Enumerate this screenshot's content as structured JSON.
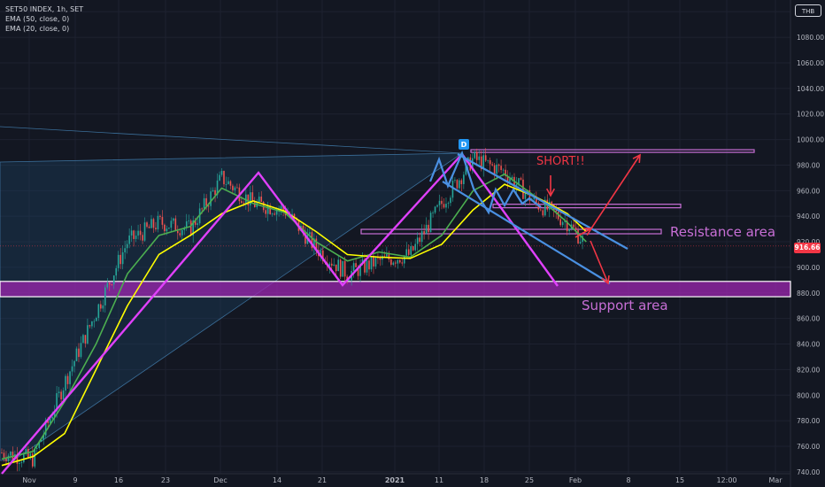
{
  "legend": {
    "symbol": "SET50 INDEX, 1h, SET",
    "ema50": "EMA (50, close, 0)",
    "ema20": "EMA (20, close, 0)"
  },
  "currency": "THB",
  "price_tag": "916.66",
  "annotations": {
    "short": "SHORT!!",
    "resistance": "Resistance area",
    "support": "Support area",
    "marker": "D"
  },
  "colors": {
    "background": "#131722",
    "bull": "#26a69a",
    "bear": "#ef5350",
    "ema50": "#ffff00",
    "ema20": "#4caf50",
    "magenta": "#e040fb",
    "channel": "#4a90e2",
    "zone": "#c86fd6",
    "support_fill": "#9c27b0",
    "arrow": "#f23645"
  },
  "chart_data": {
    "type": "line",
    "title": "SET50 INDEX, 1h, SET",
    "ylim": [
      737,
      1103
    ],
    "y_ticks": [
      740,
      760,
      780,
      800,
      820,
      840,
      860,
      880,
      900,
      920,
      940,
      960,
      980,
      1000,
      1020,
      1040,
      1060,
      1080,
      1100
    ],
    "x_ticks": [
      "Nov",
      "9",
      "16",
      "23",
      "Dec",
      "14",
      "21",
      "2021",
      "11",
      "18",
      "25",
      "Feb",
      "8",
      "15",
      "12:00",
      "Mar"
    ],
    "grid": true,
    "series": [
      {
        "name": "EMA (20, close, 0)",
        "color": "#4caf50",
        "x": [
          0,
          5,
          10,
          15,
          20,
          25,
          30,
          35,
          40,
          45,
          50,
          55,
          60,
          65,
          70,
          75,
          80,
          85,
          87,
          90,
          93
        ],
        "y": [
          750,
          756,
          795,
          840,
          895,
          925,
          932,
          962,
          950,
          943,
          920,
          905,
          912,
          908,
          925,
          960,
          973,
          955,
          948,
          935,
          920
        ]
      },
      {
        "name": "EMA (50, close, 0)",
        "color": "#ffff00",
        "x": [
          0,
          5,
          10,
          15,
          20,
          25,
          30,
          35,
          40,
          45,
          50,
          55,
          60,
          65,
          70,
          75,
          80,
          85,
          87,
          90,
          93
        ],
        "y": [
          745,
          752,
          770,
          820,
          870,
          910,
          925,
          942,
          952,
          944,
          928,
          910,
          908,
          907,
          918,
          945,
          965,
          955,
          950,
          942,
          928
        ]
      }
    ],
    "price": {
      "x": [
        0,
        5,
        10,
        15,
        20,
        25,
        30,
        35,
        40,
        45,
        50,
        55,
        60,
        65,
        70,
        75,
        80,
        85,
        87,
        90,
        93
      ],
      "y": [
        755,
        750,
        810,
        865,
        920,
        935,
        930,
        970,
        950,
        945,
        915,
        895,
        905,
        910,
        950,
        985,
        975,
        950,
        945,
        935,
        918
      ]
    },
    "levels": {
      "resistance_lines": [
        991,
        948,
        928
      ],
      "support_band": [
        877,
        889
      ],
      "last_price": 916.66
    }
  }
}
